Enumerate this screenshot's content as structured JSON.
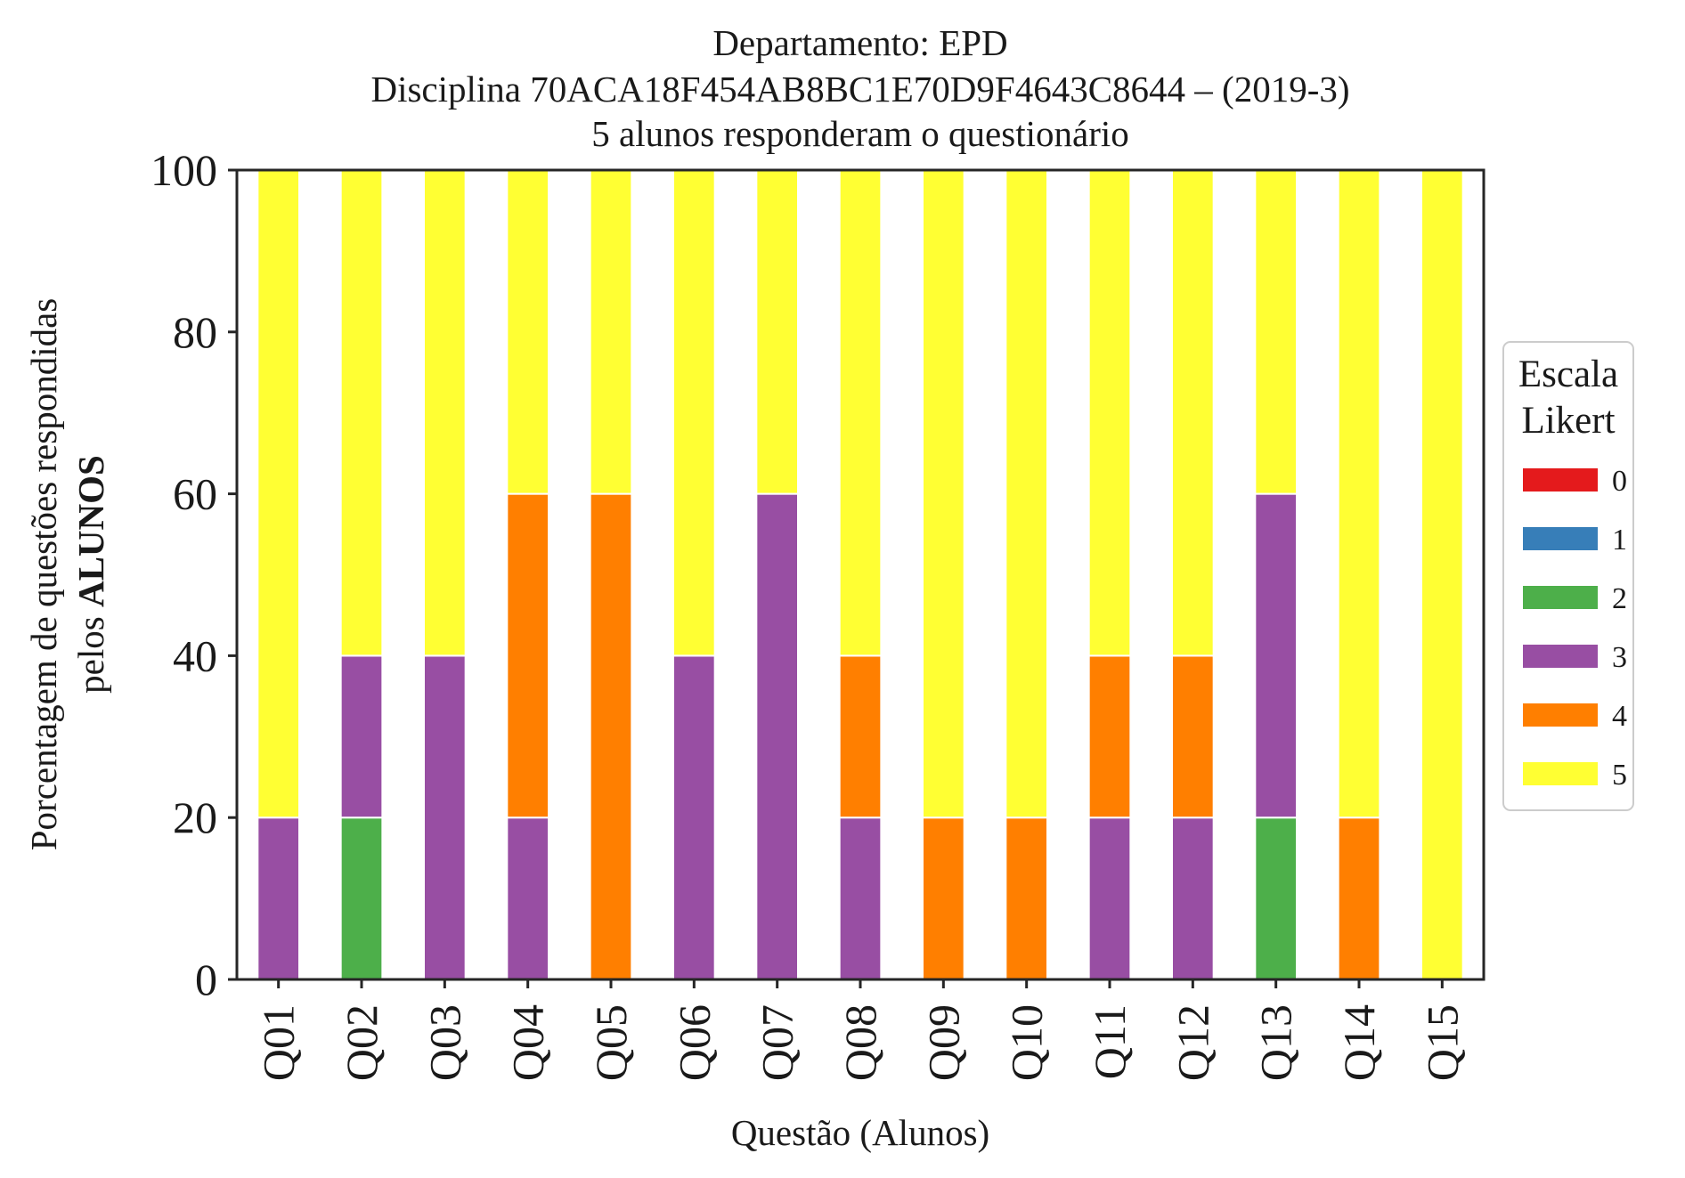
{
  "chart_data": {
    "type": "bar",
    "stacked": true,
    "title": [
      "Departamento: EPD",
      "Disciplina 70ACA18F454AB8BC1E70D9F4643C8644 – (2019-3)",
      "5 alunos responderam o questionário"
    ],
    "xlabel": "Questão (Alunos)",
    "ylabel_line1": "Porcentagem de questões respondidas",
    "ylabel_line2_prefix": "pelos ",
    "ylabel_line2_bold": "ALUNOS",
    "ylim": [
      0,
      100
    ],
    "yticks": [
      "0",
      "20",
      "40",
      "60",
      "80",
      "100"
    ],
    "grid": false,
    "legend_placement": "right",
    "legend_title": [
      "Escala",
      "Likert"
    ],
    "categories": [
      "Q01",
      "Q02",
      "Q03",
      "Q04",
      "Q05",
      "Q06",
      "Q07",
      "Q08",
      "Q09",
      "Q10",
      "Q11",
      "Q12",
      "Q13",
      "Q14",
      "Q15"
    ],
    "series": [
      {
        "name": "0",
        "color": "#e41a1c",
        "values": [
          0,
          0,
          0,
          0,
          0,
          0,
          0,
          0,
          0,
          0,
          0,
          0,
          0,
          0,
          0
        ]
      },
      {
        "name": "1",
        "color": "#377eb8",
        "values": [
          0,
          0,
          0,
          0,
          0,
          0,
          0,
          0,
          0,
          0,
          0,
          0,
          0,
          0,
          0
        ]
      },
      {
        "name": "2",
        "color": "#4daf4a",
        "values": [
          0,
          20,
          0,
          0,
          0,
          0,
          0,
          0,
          0,
          0,
          0,
          0,
          20,
          0,
          0
        ]
      },
      {
        "name": "3",
        "color": "#984ea3",
        "values": [
          20,
          20,
          40,
          20,
          0,
          40,
          60,
          20,
          0,
          0,
          20,
          20,
          40,
          0,
          0
        ]
      },
      {
        "name": "4",
        "color": "#ff7f00",
        "values": [
          0,
          0,
          0,
          40,
          60,
          0,
          0,
          20,
          20,
          20,
          20,
          20,
          0,
          20,
          0
        ]
      },
      {
        "name": "5",
        "color": "#ffff33",
        "values": [
          80,
          60,
          60,
          40,
          40,
          60,
          40,
          60,
          80,
          80,
          60,
          60,
          40,
          80,
          100
        ]
      }
    ]
  }
}
